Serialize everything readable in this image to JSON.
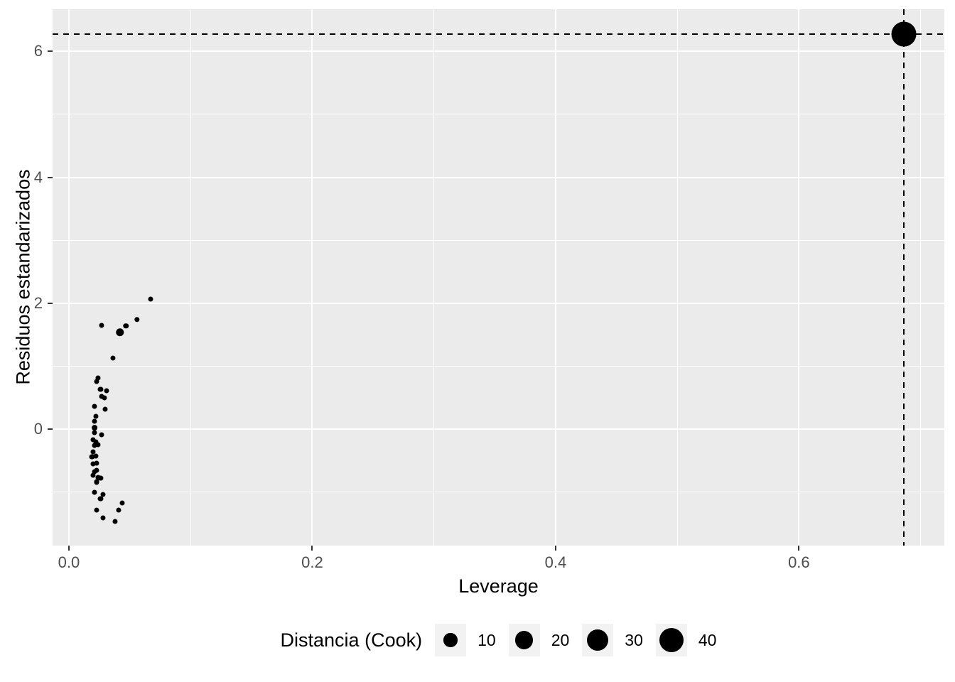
{
  "chart_data": {
    "type": "scatter",
    "title": "",
    "xlabel": "Leverage",
    "ylabel": "Residuos estandarizados",
    "xlim": [
      -0.0134,
      0.7195
    ],
    "ylim": [
      -1.85,
      6.67
    ],
    "x_major_ticks": [
      0.0,
      0.2,
      0.4,
      0.6
    ],
    "x_tick_labels": [
      "0.0",
      "0.2",
      "0.4",
      "0.6"
    ],
    "x_minor_ticks": [
      0.1,
      0.3,
      0.5,
      0.7
    ],
    "y_major_ticks": [
      0,
      2,
      4,
      6
    ],
    "y_tick_labels": [
      "0",
      "2",
      "4",
      "6"
    ],
    "y_minor_ticks": [
      -1,
      1,
      3,
      5
    ],
    "grid": true,
    "legend_position": "bottom",
    "colors": {
      "panel_bg": "#EBEBEB",
      "grid": "#FFFFFF",
      "point": "#000000",
      "tick_text": "#4D4D4D",
      "tick_mark": "#333333",
      "legend_key_bg": "#F2F2F2",
      "reference_line": "#000000"
    },
    "reference_lines": {
      "hline_y": 6.28,
      "vline_x": 0.686,
      "style": "dashed"
    },
    "size_scale": {
      "variable": "cook",
      "diameter_a": 4.5,
      "diameter_b": 4.7
    },
    "legend": {
      "title": "Distancia (Cook)",
      "entries": [
        {
          "label": "10",
          "value": 10
        },
        {
          "label": "20",
          "value": 20
        },
        {
          "label": "30",
          "value": 30
        },
        {
          "label": "40",
          "value": 40
        }
      ]
    },
    "points": [
      {
        "x": 0.067,
        "y": 2.07,
        "cook": 0.3
      },
      {
        "x": 0.056,
        "y": 1.74,
        "cook": 0.4
      },
      {
        "x": 0.047,
        "y": 1.64,
        "cook": 0.4
      },
      {
        "x": 0.042,
        "y": 1.54,
        "cook": 2.2
      },
      {
        "x": 0.027,
        "y": 1.65,
        "cook": 0.3
      },
      {
        "x": 0.036,
        "y": 1.13,
        "cook": 0.3
      },
      {
        "x": 0.024,
        "y": 0.81,
        "cook": 0.3
      },
      {
        "x": 0.023,
        "y": 0.76,
        "cook": 0.3
      },
      {
        "x": 0.026,
        "y": 0.63,
        "cook": 0.3
      },
      {
        "x": 0.031,
        "y": 0.61,
        "cook": 0.3
      },
      {
        "x": 0.027,
        "y": 0.52,
        "cook": 0.3
      },
      {
        "x": 0.029,
        "y": 0.5,
        "cook": 0.3
      },
      {
        "x": 0.021,
        "y": 0.36,
        "cook": 0.3
      },
      {
        "x": 0.03,
        "y": 0.32,
        "cook": 0.3
      },
      {
        "x": 0.022,
        "y": 0.2,
        "cook": 0.3
      },
      {
        "x": 0.021,
        "y": 0.12,
        "cook": 0.3
      },
      {
        "x": 0.021,
        "y": 0.02,
        "cook": 0.5
      },
      {
        "x": 0.021,
        "y": -0.06,
        "cook": 0.3
      },
      {
        "x": 0.027,
        "y": -0.09,
        "cook": 0.3
      },
      {
        "x": 0.02,
        "y": -0.17,
        "cook": 0.3
      },
      {
        "x": 0.022,
        "y": -0.2,
        "cook": 0.3
      },
      {
        "x": 0.021,
        "y": -0.26,
        "cook": 0.3
      },
      {
        "x": 0.024,
        "y": -0.25,
        "cook": 0.3
      },
      {
        "x": 0.02,
        "y": -0.36,
        "cook": 0.3
      },
      {
        "x": 0.022,
        "y": -0.43,
        "cook": 0.3
      },
      {
        "x": 0.019,
        "y": -0.44,
        "cook": 0.3
      },
      {
        "x": 0.023,
        "y": -0.54,
        "cook": 0.3
      },
      {
        "x": 0.02,
        "y": -0.55,
        "cook": 0.3
      },
      {
        "x": 0.023,
        "y": -0.65,
        "cook": 0.3
      },
      {
        "x": 0.021,
        "y": -0.68,
        "cook": 0.3
      },
      {
        "x": 0.02,
        "y": -0.73,
        "cook": 0.3
      },
      {
        "x": 0.024,
        "y": -0.77,
        "cook": 0.3
      },
      {
        "x": 0.026,
        "y": -0.78,
        "cook": 0.3
      },
      {
        "x": 0.023,
        "y": -0.84,
        "cook": 0.3
      },
      {
        "x": 0.021,
        "y": -1.0,
        "cook": 0.3
      },
      {
        "x": 0.028,
        "y": -1.04,
        "cook": 0.3
      },
      {
        "x": 0.026,
        "y": -1.11,
        "cook": 0.3
      },
      {
        "x": 0.044,
        "y": -1.17,
        "cook": 0.3
      },
      {
        "x": 0.023,
        "y": -1.29,
        "cook": 0.3
      },
      {
        "x": 0.041,
        "y": -1.29,
        "cook": 0.3
      },
      {
        "x": 0.028,
        "y": -1.41,
        "cook": 0.3
      },
      {
        "x": 0.038,
        "y": -1.47,
        "cook": 0.3
      },
      {
        "x": 0.686,
        "y": 6.28,
        "cook": 42
      }
    ]
  }
}
